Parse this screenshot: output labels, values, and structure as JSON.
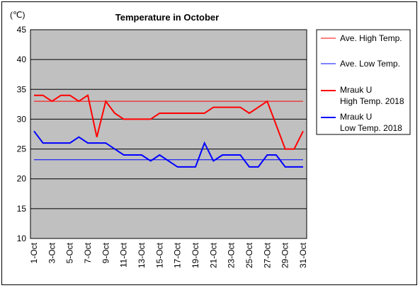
{
  "chart_data": {
    "type": "line",
    "title": "Temperature in October",
    "unit_label": "(℃)",
    "ylim": [
      10,
      45
    ],
    "y_ticks": [
      45,
      40,
      35,
      30,
      25,
      20,
      15,
      10
    ],
    "x_ticks": [
      "1-Oct",
      "3-Oct",
      "5-Oct",
      "7-Oct",
      "9-Oct",
      "11-Oct",
      "13-Oct",
      "15-Oct",
      "17-Oct",
      "19-Oct",
      "21-Oct",
      "23-Oct",
      "25-Oct",
      "27-Oct",
      "29-Oct",
      "31-Oct"
    ],
    "grid": true,
    "legend_position": "right",
    "plot_background": "#c0c0c0",
    "days": [
      1,
      2,
      3,
      4,
      5,
      6,
      7,
      8,
      9,
      10,
      11,
      12,
      13,
      14,
      15,
      16,
      17,
      18,
      19,
      20,
      21,
      22,
      23,
      24,
      25,
      26,
      27,
      28,
      29,
      30,
      31
    ],
    "series": [
      {
        "name": "Ave. High Temp.",
        "color": "#ff0000",
        "width": 1,
        "values": [
          33,
          33,
          33,
          33,
          33,
          33,
          33,
          33,
          33,
          33,
          33,
          33,
          33,
          33,
          33,
          33,
          33,
          33,
          33,
          33,
          33,
          33,
          33,
          33,
          33,
          33,
          33,
          33,
          33,
          33,
          33
        ]
      },
      {
        "name": "Ave. Low Temp.",
        "color": "#0000ff",
        "width": 1,
        "values": [
          23.2,
          23.2,
          23.2,
          23.2,
          23.2,
          23.2,
          23.2,
          23.2,
          23.2,
          23.2,
          23.2,
          23.2,
          23.2,
          23.2,
          23.2,
          23.2,
          23.2,
          23.2,
          23.2,
          23.2,
          23.2,
          23.2,
          23.2,
          23.2,
          23.2,
          23.2,
          23.2,
          23.2,
          23.2,
          23.2,
          23.2
        ]
      },
      {
        "name": "Mrauk U\nHigh Temp. 2018",
        "color": "#ff0000",
        "width": 2,
        "values": [
          34,
          34,
          33,
          34,
          34,
          33,
          34,
          27,
          33,
          31,
          30,
          30,
          30,
          30,
          31,
          31,
          31,
          31,
          31,
          31,
          32,
          32,
          32,
          32,
          31,
          32,
          33,
          29,
          25,
          25,
          28
        ]
      },
      {
        "name": "Mrauk U\nLow Temp. 2018",
        "color": "#0000ff",
        "width": 2,
        "values": [
          28,
          26,
          26,
          26,
          26,
          27,
          26,
          26,
          26,
          25,
          24,
          24,
          24,
          23,
          24,
          23,
          22,
          22,
          22,
          26,
          23,
          24,
          24,
          24,
          22,
          22,
          24,
          24,
          22,
          22,
          22
        ]
      }
    ]
  }
}
